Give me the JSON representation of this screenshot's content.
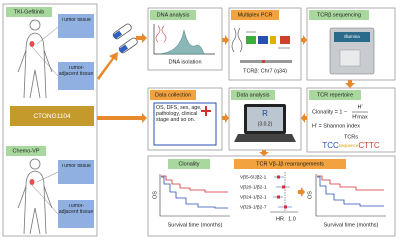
{
  "left_panel": {
    "groups": [
      {
        "title": "TKI-Gefitinib",
        "tissues": [
          "Tumor tissue",
          "Tumor-adjacent tissue"
        ]
      },
      {
        "title": "Chemo-VP",
        "tissues": [
          "Tumor tissue",
          "Tumor-adjacent tissue"
        ]
      }
    ],
    "trial": "CTONG1104"
  },
  "steps": {
    "dna_analysis": {
      "title": "DNA analysis",
      "caption": "DNA isolation"
    },
    "multiplex_pcr": {
      "title": "Multiplex PCR",
      "caption": "TCRβ: Chr7 (q34)"
    },
    "sequencing": {
      "title": "TCRβ sequencing",
      "instrument": "Illumina"
    },
    "repertoire": {
      "title": "TCR repertoire",
      "formula": "Clonality = 1 −",
      "numerator": "H'",
      "denominator": "H'max",
      "note": "H' = Shannon index",
      "tcrs": "TCRs",
      "sequence": [
        "TCC",
        "sequence",
        "CTTC"
      ]
    },
    "data_analysis": {
      "title": "Data analysis",
      "software": "R",
      "version": "(3.0.2)"
    },
    "data_collection": {
      "title": "Data collection",
      "text": "OS, DFS, sex, age, pathology, clinical stage and so on."
    }
  },
  "results": {
    "clonality": {
      "title": "Clonality",
      "y_label": "OS",
      "x_label": "Survival time (months)"
    },
    "rearrangements": {
      "title": "TCR Vβ-Jβ rearrangements",
      "genes": [
        "Vβ5-6/Jβ2-1",
        "Vβ20-1/β2-1",
        "Vβ24-1/β2-1",
        "Vβ29-1/β2-7"
      ],
      "x_label": "HR",
      "ref_tick": "1.0",
      "km_y_label": "OS",
      "km_x_label": "Survival time (months)"
    }
  }
}
